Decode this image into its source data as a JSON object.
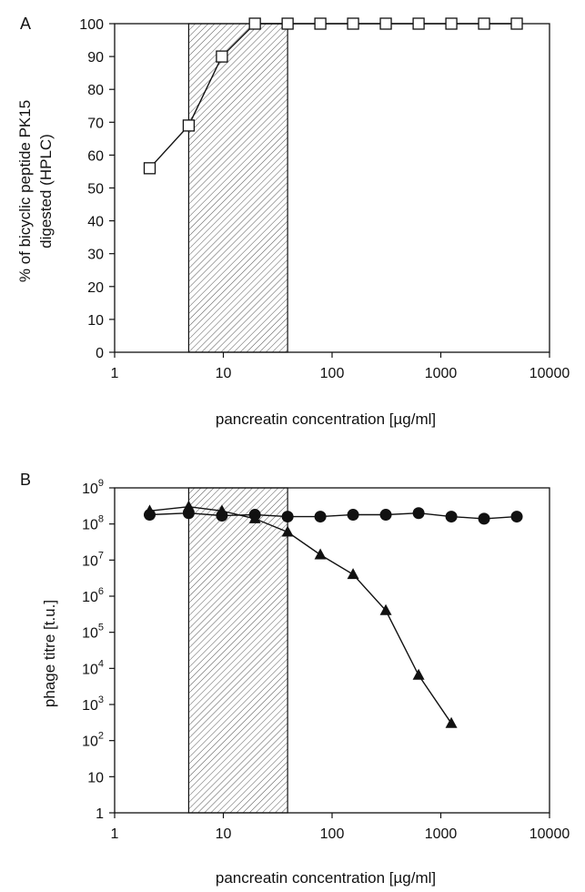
{
  "chart_data": [
    {
      "panel": "A",
      "type": "line",
      "xlabel": "pancreatin concentration [µg/ml]",
      "ylabel_lines": [
        "% of bicyclic peptide PK15",
        "digested (HPLC)"
      ],
      "xscale": "log",
      "xlim": [
        1,
        10000
      ],
      "xticks": [
        1,
        10,
        100,
        1000,
        10000
      ],
      "xtick_labels": [
        "1",
        "10",
        "100",
        "1000",
        "10000"
      ],
      "ylim": [
        0,
        100
      ],
      "yticks": [
        0,
        10,
        20,
        30,
        40,
        50,
        60,
        70,
        80,
        90,
        100
      ],
      "ytick_labels": [
        "0",
        "10",
        "20",
        "30",
        "40",
        "50",
        "60",
        "70",
        "80",
        "90",
        "100"
      ],
      "shaded_region": [
        4.8,
        39
      ],
      "grid": false,
      "legend": "none",
      "series": [
        {
          "marker": "open-square",
          "x": [
            2.1,
            4.8,
            9.7,
            19.5,
            39,
            78,
            156,
            312,
            625,
            1250,
            2500,
            5000
          ],
          "y": [
            56,
            69,
            90,
            100,
            100,
            100,
            100,
            100,
            100,
            100,
            100,
            100
          ]
        }
      ]
    },
    {
      "panel": "B",
      "type": "line",
      "xlabel": "pancreatin concentration [µg/ml]",
      "ylabel_lines": [
        "phage titre [t.u.]"
      ],
      "xscale": "log",
      "yscale": "log",
      "xlim": [
        1,
        10000
      ],
      "xticks": [
        1,
        10,
        100,
        1000,
        10000
      ],
      "xtick_labels": [
        "1",
        "10",
        "100",
        "1000",
        "10000"
      ],
      "ylim": [
        1,
        1000000000
      ],
      "yticks": [
        1,
        10,
        100,
        1000,
        10000,
        100000,
        1000000,
        10000000,
        100000000,
        1000000000
      ],
      "ytick_labels": [
        {
          "base": "1",
          "exp": ""
        },
        {
          "base": "10",
          "exp": ""
        },
        {
          "base": "10",
          "exp": "2"
        },
        {
          "base": "10",
          "exp": "3"
        },
        {
          "base": "10",
          "exp": "4"
        },
        {
          "base": "10",
          "exp": "5"
        },
        {
          "base": "10",
          "exp": "6"
        },
        {
          "base": "10",
          "exp": "7"
        },
        {
          "base": "10",
          "exp": "8"
        },
        {
          "base": "10",
          "exp": "9"
        }
      ],
      "shaded_region": [
        4.8,
        39
      ],
      "grid": false,
      "legend": "none",
      "series": [
        {
          "marker": "filled-circle",
          "x": [
            2.1,
            4.8,
            9.7,
            19.5,
            39,
            78,
            156,
            312,
            625,
            1250,
            2500,
            5000
          ],
          "y": [
            180000000,
            200000000,
            170000000,
            180000000,
            160000000,
            160000000,
            180000000,
            180000000,
            200000000,
            160000000,
            140000000,
            160000000
          ]
        },
        {
          "marker": "filled-triangle",
          "x": [
            2.1,
            4.8,
            9.7,
            19.5,
            39,
            78,
            156,
            312,
            625,
            1250
          ],
          "y": [
            230000000,
            300000000,
            230000000,
            140000000,
            60000000,
            14000000,
            4000000,
            400000,
            6500,
            300
          ]
        }
      ]
    }
  ]
}
